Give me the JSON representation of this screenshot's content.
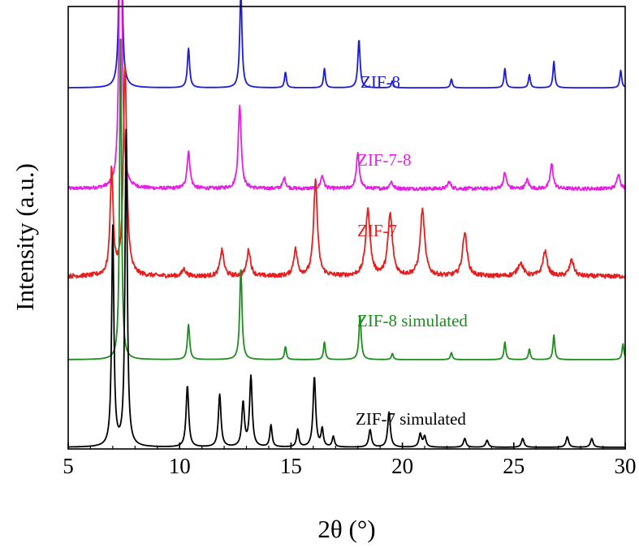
{
  "chart_data": {
    "type": "line",
    "xlabel": "2θ (°)",
    "ylabel": "Intensity (a.u.)",
    "xlim": [
      5,
      30
    ],
    "x_ticks": [
      5,
      10,
      15,
      20,
      25,
      30
    ],
    "x_tick_labels": [
      "5",
      "10",
      "15",
      "20",
      "25",
      "30"
    ],
    "grid": false,
    "legend": "none",
    "series": [
      {
        "name": "ZIF-8",
        "color": "#1a1adc",
        "baseline": 4.1,
        "noise": 0.0,
        "peaks": [
          [
            7.35,
            4.2,
            0.05
          ],
          [
            10.4,
            0.45,
            0.06
          ],
          [
            12.75,
            1.1,
            0.06
          ],
          [
            14.75,
            0.18,
            0.05
          ],
          [
            16.5,
            0.22,
            0.05
          ],
          [
            18.05,
            0.55,
            0.06
          ],
          [
            19.55,
            0.08,
            0.05
          ],
          [
            22.2,
            0.1,
            0.05
          ],
          [
            24.6,
            0.22,
            0.05
          ],
          [
            25.7,
            0.15,
            0.05
          ],
          [
            26.8,
            0.3,
            0.05
          ],
          [
            29.8,
            0.2,
            0.05
          ]
        ]
      },
      {
        "name": "ZIF-7-8",
        "color": "#e61ee6",
        "baseline": 2.95,
        "noise": 0.04,
        "peaks": [
          [
            7.35,
            4.0,
            0.07
          ],
          [
            10.4,
            0.42,
            0.08
          ],
          [
            12.7,
            0.95,
            0.08
          ],
          [
            14.7,
            0.12,
            0.08
          ],
          [
            16.4,
            0.15,
            0.08
          ],
          [
            18.0,
            0.4,
            0.08
          ],
          [
            19.5,
            0.08,
            0.08
          ],
          [
            22.1,
            0.08,
            0.08
          ],
          [
            24.6,
            0.18,
            0.08
          ],
          [
            25.6,
            0.1,
            0.08
          ],
          [
            26.7,
            0.28,
            0.08
          ],
          [
            29.7,
            0.18,
            0.08
          ]
        ]
      },
      {
        "name": "ZIF-7",
        "color": "#e61e1e",
        "baseline": 1.95,
        "noise": 0.05,
        "peaks": [
          [
            6.95,
            1.2,
            0.08
          ],
          [
            7.55,
            2.4,
            0.09
          ],
          [
            10.2,
            0.08,
            0.1
          ],
          [
            11.9,
            0.3,
            0.1
          ],
          [
            13.1,
            0.3,
            0.1
          ],
          [
            15.2,
            0.3,
            0.1
          ],
          [
            16.1,
            1.1,
            0.1
          ],
          [
            18.45,
            0.75,
            0.12
          ],
          [
            19.45,
            0.7,
            0.12
          ],
          [
            20.9,
            0.75,
            0.12
          ],
          [
            22.8,
            0.5,
            0.12
          ],
          [
            25.3,
            0.15,
            0.15
          ],
          [
            26.4,
            0.28,
            0.12
          ],
          [
            27.6,
            0.18,
            0.12
          ]
        ]
      },
      {
        "name": "ZIF-8 simulated",
        "color": "#1e8c1e",
        "baseline": 1.0,
        "noise": 0.0,
        "peaks": [
          [
            7.35,
            3.8,
            0.05
          ],
          [
            10.4,
            0.4,
            0.06
          ],
          [
            12.75,
            1.05,
            0.06
          ],
          [
            14.75,
            0.15,
            0.05
          ],
          [
            16.5,
            0.2,
            0.05
          ],
          [
            18.1,
            0.5,
            0.06
          ],
          [
            19.55,
            0.07,
            0.05
          ],
          [
            22.2,
            0.08,
            0.05
          ],
          [
            24.6,
            0.2,
            0.05
          ],
          [
            25.7,
            0.12,
            0.05
          ],
          [
            26.8,
            0.28,
            0.05
          ],
          [
            29.9,
            0.18,
            0.05
          ]
        ]
      },
      {
        "name": "ZIF-7 simulated",
        "color": "#000000",
        "baseline": 0.0,
        "noise": 0.0,
        "peaks": [
          [
            7.0,
            2.5,
            0.06
          ],
          [
            7.6,
            3.6,
            0.06
          ],
          [
            10.35,
            0.7,
            0.07
          ],
          [
            11.8,
            0.6,
            0.07
          ],
          [
            12.85,
            0.5,
            0.07
          ],
          [
            13.2,
            0.8,
            0.07
          ],
          [
            14.1,
            0.25,
            0.06
          ],
          [
            15.3,
            0.2,
            0.06
          ],
          [
            16.05,
            0.8,
            0.07
          ],
          [
            16.4,
            0.2,
            0.06
          ],
          [
            16.9,
            0.12,
            0.06
          ],
          [
            18.55,
            0.2,
            0.07
          ],
          [
            19.4,
            0.4,
            0.07
          ],
          [
            20.8,
            0.15,
            0.07
          ],
          [
            21.0,
            0.12,
            0.07
          ],
          [
            22.8,
            0.1,
            0.07
          ],
          [
            23.8,
            0.08,
            0.07
          ],
          [
            25.4,
            0.1,
            0.07
          ],
          [
            27.4,
            0.12,
            0.07
          ],
          [
            28.5,
            0.1,
            0.07
          ]
        ]
      }
    ]
  }
}
